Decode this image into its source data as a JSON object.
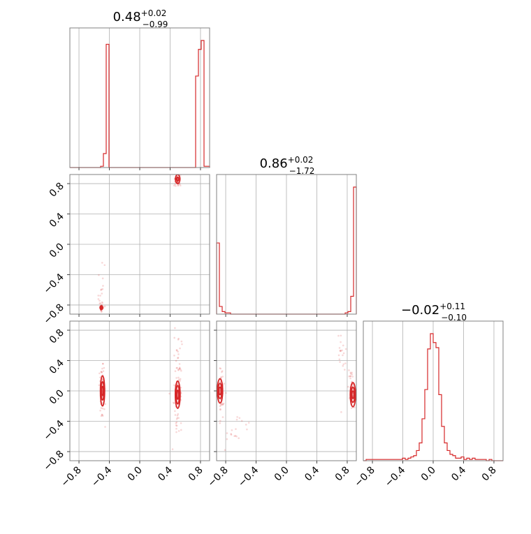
{
  "colors": {
    "series": "#d62728",
    "grid": "#b0b0b0",
    "frame": "#808080",
    "tick": "#444444"
  },
  "chart_data": {
    "type": "corner",
    "grid": true,
    "parameters": [
      "",
      "",
      ""
    ],
    "titles": [
      {
        "main": "0.48",
        "sup": "+0.02",
        "sub": "−0.99"
      },
      {
        "main": "0.86",
        "sup": "+0.02",
        "sub": "−1.72"
      },
      {
        "main": "−0.02",
        "sup": "+0.11",
        "sub": "−0.10"
      }
    ],
    "tick_values": [
      -0.8,
      -0.4,
      0.0,
      0.4,
      0.8
    ],
    "tick_labels": [
      "−0.8",
      "−0.4",
      "0.0",
      "0.4",
      "0.8"
    ],
    "ranges": [
      [
        -0.92,
        0.92
      ],
      [
        -0.92,
        0.92
      ],
      [
        -0.92,
        0.92
      ]
    ],
    "histograms": [
      {
        "param": 0,
        "edges": [
          -0.92,
          0.92
        ],
        "bins": 50,
        "counts": [
          0,
          0,
          0,
          0,
          0,
          0,
          0,
          0,
          0,
          0,
          0,
          1,
          11,
          97,
          0,
          0,
          0,
          0,
          0,
          0,
          0,
          0,
          0,
          0,
          0,
          0,
          0,
          0,
          0,
          0,
          0,
          0,
          0,
          0,
          0,
          0,
          0,
          0,
          0,
          0,
          0,
          0,
          0,
          0,
          0,
          72,
          93,
          100,
          1,
          1
        ]
      },
      {
        "param": 1,
        "edges": [
          -0.92,
          0.92
        ],
        "bins": 50,
        "counts": [
          56,
          6,
          2,
          1,
          1,
          0,
          0,
          0,
          0,
          0,
          0,
          0,
          0,
          0,
          0,
          0,
          0,
          0,
          0,
          0,
          0,
          0,
          0,
          0,
          0,
          0,
          0,
          0,
          0,
          0,
          0,
          0,
          0,
          0,
          0,
          0,
          0,
          0,
          0,
          0,
          0,
          0,
          0,
          0,
          0,
          0,
          1,
          2,
          14,
          100
        ]
      },
      {
        "param": 2,
        "edges": [
          -0.92,
          0.92
        ],
        "bins": 50,
        "counts": [
          0,
          1,
          1,
          1,
          1,
          1,
          1,
          1,
          1,
          1,
          1,
          1,
          1,
          1,
          2,
          1,
          2,
          3,
          4,
          8,
          14,
          33,
          56,
          88,
          100,
          93,
          89,
          52,
          27,
          14,
          8,
          5,
          4,
          2,
          2,
          3,
          1,
          2,
          1,
          2,
          1,
          1,
          1,
          1,
          0,
          1,
          0,
          0,
          0,
          0
        ]
      }
    ],
    "blobs": [
      {
        "row": 1,
        "col": 0,
        "cx": -0.505,
        "cy": -0.83,
        "sx": 0.012,
        "sy": 0.03,
        "n": 40
      },
      {
        "row": 1,
        "col": 0,
        "cx": 0.49,
        "cy": 0.85,
        "sx": 0.02,
        "sy": 0.05,
        "n": 60
      },
      {
        "row": 1,
        "col": 0,
        "cx": -0.52,
        "cy": -0.55,
        "sx": 0.03,
        "sy": 0.15,
        "n": 12
      },
      {
        "row": 2,
        "col": 0,
        "cx": -0.49,
        "cy": 0.0,
        "sx": 0.02,
        "sy": 0.2,
        "n": 70
      },
      {
        "row": 2,
        "col": 0,
        "cx": 0.5,
        "cy": 0.0,
        "sx": 0.025,
        "sy": 0.22,
        "n": 80
      },
      {
        "row": 2,
        "col": 0,
        "cx": 0.52,
        "cy": 0.45,
        "sx": 0.03,
        "sy": 0.2,
        "n": 15
      },
      {
        "row": 2,
        "col": 1,
        "cx": -0.86,
        "cy": 0.0,
        "sx": 0.02,
        "sy": 0.15,
        "n": 60
      },
      {
        "row": 2,
        "col": 1,
        "cx": 0.86,
        "cy": 0.0,
        "sx": 0.02,
        "sy": 0.12,
        "n": 50
      },
      {
        "row": 2,
        "col": 1,
        "cx": 0.73,
        "cy": 0.45,
        "sx": 0.04,
        "sy": 0.18,
        "n": 20
      },
      {
        "row": 2,
        "col": 1,
        "cx": -0.7,
        "cy": -0.5,
        "sx": 0.1,
        "sy": 0.15,
        "n": 20
      }
    ],
    "contours": [
      {
        "row": 1,
        "col": 0,
        "cx": -0.505,
        "cy": -0.835,
        "rx": [
          0.01,
          0.018
        ],
        "ry": [
          0.015,
          0.025
        ]
      },
      {
        "row": 1,
        "col": 0,
        "cx": 0.5,
        "cy": 0.86,
        "rx": [
          0.015,
          0.03
        ],
        "ry": [
          0.025,
          0.06
        ]
      },
      {
        "row": 2,
        "col": 0,
        "cx": -0.49,
        "cy": 0.0,
        "rx": [
          0.012,
          0.02,
          0.028
        ],
        "ry": [
          0.06,
          0.12,
          0.2
        ]
      },
      {
        "row": 2,
        "col": 0,
        "cx": 0.5,
        "cy": -0.05,
        "rx": [
          0.012,
          0.022,
          0.032
        ],
        "ry": [
          0.06,
          0.12,
          0.18
        ]
      },
      {
        "row": 2,
        "col": 1,
        "cx": -0.875,
        "cy": 0.0,
        "rx": [
          0.015,
          0.025,
          0.035
        ],
        "ry": [
          0.05,
          0.1,
          0.16
        ]
      },
      {
        "row": 2,
        "col": 1,
        "cx": 0.875,
        "cy": -0.05,
        "rx": [
          0.015,
          0.025,
          0.035
        ],
        "ry": [
          0.05,
          0.1,
          0.16
        ]
      }
    ]
  }
}
